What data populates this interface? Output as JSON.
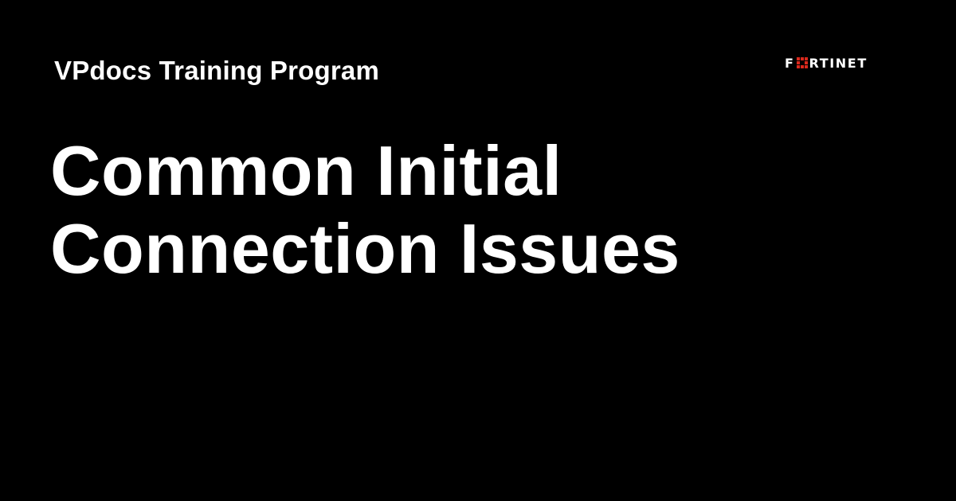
{
  "program": {
    "title": "VPdocs Training Program"
  },
  "headline": {
    "line1": "Common Initial",
    "line2": "Connection Issues"
  },
  "logo": {
    "text_before": "F",
    "text_after": "RTINET",
    "icon": "fortinet-grid-icon",
    "mark_color": "#da291c"
  },
  "colors": {
    "background": "#000000",
    "text": "#ffffff",
    "accent": "#da291c"
  }
}
